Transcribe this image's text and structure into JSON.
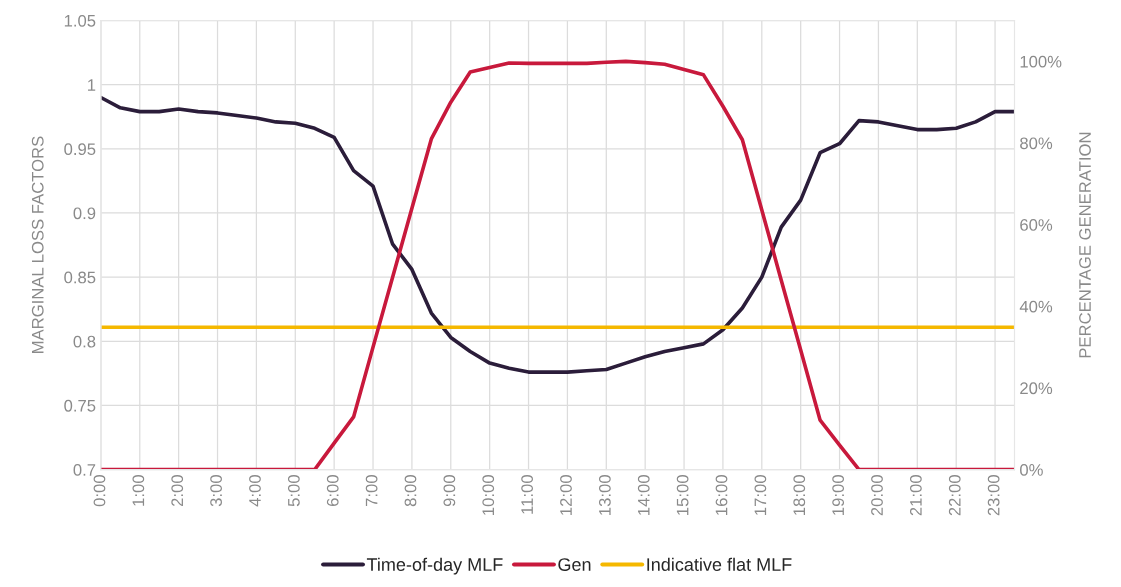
{
  "chart_data": {
    "type": "line",
    "x": [
      0,
      0.5,
      1,
      1.5,
      2,
      2.5,
      3,
      3.5,
      4,
      4.5,
      5,
      5.5,
      6,
      6.5,
      7,
      7.5,
      8,
      8.5,
      9,
      9.5,
      10,
      10.5,
      11,
      11.5,
      12,
      12.5,
      13,
      13.5,
      14,
      14.5,
      15,
      15.5,
      16,
      16.5,
      17,
      17.5,
      18,
      18.5,
      19,
      19.5,
      20,
      20.5,
      21,
      21.5,
      22,
      22.5,
      23,
      23.5
    ],
    "series": [
      {
        "name": "Time-of-day MLF",
        "color": "#2b1d3a",
        "values": [
          0.99,
          0.982,
          0.979,
          0.979,
          0.981,
          0.979,
          0.978,
          0.976,
          0.974,
          0.971,
          0.97,
          0.966,
          0.959,
          0.933,
          0.921,
          0.876,
          0.856,
          0.822,
          0.803,
          0.792,
          0.783,
          0.779,
          0.776,
          0.776,
          0.776,
          0.777,
          0.778,
          0.783,
          0.788,
          0.792,
          0.795,
          0.798,
          0.809,
          0.826,
          0.85,
          0.889,
          0.91,
          0.947,
          0.954,
          0.972,
          0.971,
          0.968,
          0.965,
          0.965,
          0.966,
          0.971,
          0.979,
          0.979
        ]
      },
      {
        "name": "Gen",
        "color": "#c8193c",
        "axis": "y2",
        "values": [
          0,
          0,
          0,
          0,
          0,
          0,
          0,
          0,
          0,
          0,
          0,
          0,
          6.5,
          12.9,
          30,
          47,
          64,
          81,
          90,
          97.4,
          98.5,
          99.6,
          99.5,
          99.5,
          99.5,
          99.5,
          99.8,
          100,
          99.7,
          99.3,
          98,
          96.7,
          89,
          80.8,
          63.6,
          46.4,
          29.3,
          12.1,
          6,
          0,
          0,
          0,
          0,
          0,
          0,
          0,
          0,
          0
        ]
      },
      {
        "name": "Indicative flat MLF",
        "color": "#f5b800",
        "values": [
          0.811,
          0.811,
          0.811,
          0.811,
          0.811,
          0.811,
          0.811,
          0.811,
          0.811,
          0.811,
          0.811,
          0.811,
          0.811,
          0.811,
          0.811,
          0.811,
          0.811,
          0.811,
          0.811,
          0.811,
          0.811,
          0.811,
          0.811,
          0.811,
          0.811,
          0.811,
          0.811,
          0.811,
          0.811,
          0.811,
          0.811,
          0.811,
          0.811,
          0.811,
          0.811,
          0.811,
          0.811,
          0.811,
          0.811,
          0.811,
          0.811,
          0.811,
          0.811,
          0.811,
          0.811,
          0.811,
          0.811,
          0.811
        ]
      }
    ],
    "ylabel": "MARGINAL LOSS FACTORS",
    "y2label": "PERCENTAGE GENERATION",
    "xlim": [
      0,
      23.5
    ],
    "xticks": [
      {
        "value": 0,
        "label": "0:00"
      },
      {
        "value": 1,
        "label": "1:00"
      },
      {
        "value": 2,
        "label": "2:00"
      },
      {
        "value": 3,
        "label": "3:00"
      },
      {
        "value": 4,
        "label": "4:00"
      },
      {
        "value": 5,
        "label": "5:00"
      },
      {
        "value": 6,
        "label": "6:00"
      },
      {
        "value": 7,
        "label": "7:00"
      },
      {
        "value": 8,
        "label": "8:00"
      },
      {
        "value": 9,
        "label": "9:00"
      },
      {
        "value": 10,
        "label": "10:00"
      },
      {
        "value": 11,
        "label": "11:00"
      },
      {
        "value": 12,
        "label": "12:00"
      },
      {
        "value": 13,
        "label": "13:00"
      },
      {
        "value": 14,
        "label": "14:00"
      },
      {
        "value": 15,
        "label": "15:00"
      },
      {
        "value": 16,
        "label": "16:00"
      },
      {
        "value": 17,
        "label": "17:00"
      },
      {
        "value": 18,
        "label": "18:00"
      },
      {
        "value": 19,
        "label": "19:00"
      },
      {
        "value": 20,
        "label": "20:00"
      },
      {
        "value": 21,
        "label": "21:00"
      },
      {
        "value": 22,
        "label": "22:00"
      },
      {
        "value": 23,
        "label": "23:00"
      }
    ],
    "ylim": [
      0.7,
      1.05
    ],
    "yticks": [
      0.7,
      0.75,
      0.8,
      0.85,
      0.9,
      0.95,
      1,
      1.05
    ],
    "y2lim": [
      0,
      110
    ],
    "y2ticks": [
      {
        "value": 0,
        "label": "0%"
      },
      {
        "value": 20,
        "label": "20%"
      },
      {
        "value": 40,
        "label": "40%"
      },
      {
        "value": 60,
        "label": "60%"
      },
      {
        "value": 80,
        "label": "80%"
      },
      {
        "value": 100,
        "label": "100%"
      }
    ],
    "grid": true,
    "legend": "bottom",
    "marker": "none",
    "line_style": "solid"
  }
}
